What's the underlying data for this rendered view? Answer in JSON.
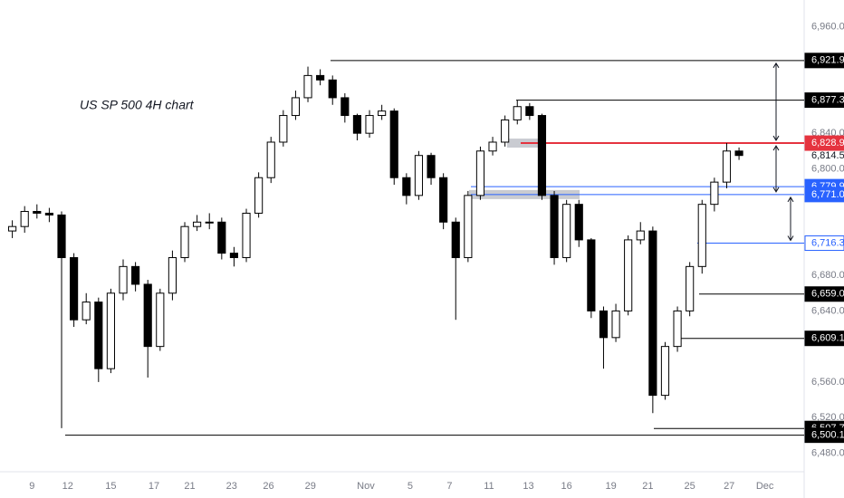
{
  "chart_data": {
    "type": "candlestick",
    "annotation": "US SP 500 4H chart",
    "up_color": "#ffffff",
    "down_color": "#000000",
    "xlim": [
      -1,
      63.7
    ],
    "ylim": [
      6460,
      6990
    ],
    "xticks": [
      {
        "value": 1.6,
        "label": "9"
      },
      {
        "value": 4.5,
        "label": "12"
      },
      {
        "value": 8.0,
        "label": "15"
      },
      {
        "value": 11.5,
        "label": "17"
      },
      {
        "value": 14.4,
        "label": "21"
      },
      {
        "value": 17.8,
        "label": "23"
      },
      {
        "value": 20.8,
        "label": "26"
      },
      {
        "value": 24.2,
        "label": "29"
      },
      {
        "value": 28.7,
        "label": "Nov"
      },
      {
        "value": 32.3,
        "label": "5"
      },
      {
        "value": 35.5,
        "label": "7"
      },
      {
        "value": 38.7,
        "label": "11"
      },
      {
        "value": 41.9,
        "label": "13"
      },
      {
        "value": 45.0,
        "label": "16"
      },
      {
        "value": 48.6,
        "label": "19"
      },
      {
        "value": 51.6,
        "label": "21"
      },
      {
        "value": 55.0,
        "label": "25"
      },
      {
        "value": 58.2,
        "label": "27"
      },
      {
        "value": 61.1,
        "label": "Dec"
      }
    ],
    "yticks": [
      {
        "value": 6960,
        "label": "6,960.0"
      },
      {
        "value": 6840,
        "label": "6,840.0"
      },
      {
        "value": 6800,
        "label": "6,800.0"
      },
      {
        "value": 6680,
        "label": "6,680.0"
      },
      {
        "value": 6640,
        "label": "6,640.0"
      },
      {
        "value": 6560,
        "label": "6,560.0"
      },
      {
        "value": 6520,
        "label": "6,520.0"
      },
      {
        "value": 6480,
        "label": "6,480.0"
      }
    ],
    "open": [
      6730,
      6735,
      6752,
      6750,
      6748,
      6700,
      6630,
      6650,
      6575,
      6660,
      6690,
      6670,
      6600,
      6660,
      6700,
      6735,
      6740,
      6740,
      6705,
      6700,
      6750,
      6790,
      6830,
      6860,
      6880,
      6905,
      6900,
      6880,
      6860,
      6840,
      6860,
      6865,
      6790,
      6770,
      6815,
      6790,
      6740,
      6700,
      6770,
      6820,
      6830,
      6855,
      6870,
      6860,
      6770,
      6700,
      6760,
      6720,
      6640,
      6610,
      6640,
      6720,
      6730,
      6545,
      6600,
      6640,
      6690,
      6760,
      6785,
      6820
    ],
    "high": [
      6742,
      6758,
      6760,
      6756,
      6752,
      6705,
      6660,
      6655,
      6665,
      6698,
      6695,
      6675,
      6665,
      6708,
      6740,
      6748,
      6750,
      6745,
      6712,
      6755,
      6796,
      6836,
      6866,
      6888,
      6915,
      6912,
      6905,
      6885,
      6862,
      6866,
      6872,
      6868,
      6795,
      6820,
      6818,
      6795,
      6745,
      6775,
      6825,
      6836,
      6860,
      6877,
      6874,
      6862,
      6775,
      6765,
      6765,
      6722,
      6645,
      6648,
      6725,
      6740,
      6735,
      6605,
      6645,
      6695,
      6765,
      6790,
      6829,
      6824
    ],
    "low": [
      6722,
      6728,
      6744,
      6740,
      6508,
      6622,
      6625,
      6560,
      6570,
      6652,
      6662,
      6565,
      6595,
      6652,
      6695,
      6730,
      6732,
      6698,
      6690,
      6695,
      6745,
      6784,
      6825,
      6855,
      6875,
      6894,
      6872,
      6852,
      6832,
      6835,
      6855,
      6782,
      6760,
      6765,
      6782,
      6732,
      6630,
      6695,
      6765,
      6815,
      6825,
      6850,
      6855,
      6765,
      6692,
      6695,
      6712,
      6632,
      6575,
      6605,
      6635,
      6715,
      6525,
      6540,
      6594,
      6634,
      6682,
      6752,
      6778,
      6810
    ],
    "close": [
      6735,
      6752,
      6750,
      6748,
      6700,
      6630,
      6650,
      6575,
      6660,
      6690,
      6670,
      6600,
      6660,
      6700,
      6735,
      6740,
      6740,
      6705,
      6700,
      6750,
      6790,
      6830,
      6860,
      6880,
      6905,
      6900,
      6880,
      6860,
      6840,
      6860,
      6865,
      6790,
      6770,
      6815,
      6790,
      6740,
      6700,
      6770,
      6820,
      6830,
      6855,
      6870,
      6860,
      6770,
      6700,
      6760,
      6720,
      6640,
      6610,
      6640,
      6720,
      6730,
      6545,
      6600,
      6640,
      6690,
      6760,
      6785,
      6820,
      6815
    ],
    "levels": [
      {
        "value": 6921.9,
        "label": "6,921.9",
        "color": "#000000"
      },
      {
        "value": 6877.3,
        "label": "6,877.3",
        "color": "#000000"
      },
      {
        "value": 6828.9,
        "label": "6,828.9",
        "color": "#e5333f"
      },
      {
        "value": 6814.5,
        "label": "6,814.5",
        "color": "#131722"
      },
      {
        "value": 6779.9,
        "label": "6,779.9",
        "color": "#2962ff"
      },
      {
        "value": 6771.0,
        "label": "6,771.0",
        "color": "#2962ff"
      },
      {
        "value": 6716.3,
        "label": "6,716.3",
        "color": "#2962ff"
      },
      {
        "value": 6659.0,
        "label": "6,659.0",
        "color": "#000000"
      },
      {
        "value": 6609.1,
        "label": "6,609.1",
        "color": "#000000"
      },
      {
        "value": 6507.7,
        "label": "6,507.7",
        "color": "#000000"
      },
      {
        "value": 6500.1,
        "label": "6,500.1",
        "color": "#000000"
      }
    ]
  }
}
